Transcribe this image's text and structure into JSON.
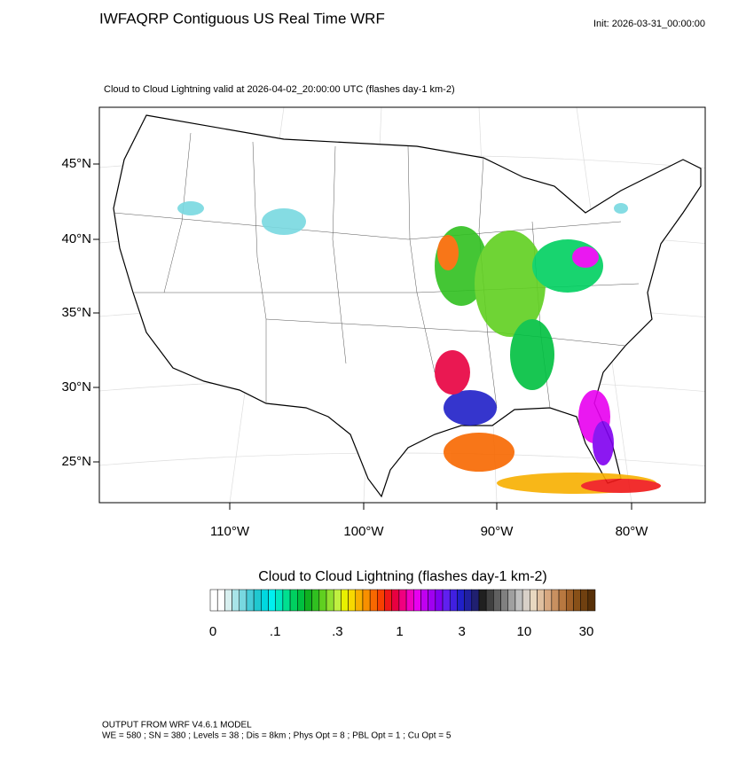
{
  "header": {
    "title": "IWFAQRP Contiguous US Real Time WRF",
    "init": "Init: 2026-03-31_00:00:00"
  },
  "map": {
    "subtitle": "Cloud to Cloud Lightning valid at 2026-04-02_20:00:00 UTC   (flashes day-1 km-2)",
    "lat_labels": [
      "45°N",
      "40°N",
      "35°N",
      "30°N",
      "25°N"
    ],
    "lon_labels": [
      "110°W",
      "100°W",
      "90°W",
      "80°W"
    ]
  },
  "colorbar": {
    "title": "Cloud to Cloud Lightning  (flashes day-1 km-2)",
    "labels": [
      "0",
      ".1",
      ".3",
      "1",
      "3",
      "10",
      "30"
    ],
    "colors": [
      "#ffffff",
      "#ffffff",
      "#d8f0f0",
      "#a8e4e8",
      "#78d8e0",
      "#48ccd8",
      "#20c8d0",
      "#00d8e0",
      "#00f0f0",
      "#00e8c0",
      "#00e090",
      "#00d060",
      "#00c040",
      "#10b020",
      "#30c020",
      "#60d020",
      "#90e030",
      "#c0f040",
      "#e8f000",
      "#f8d800",
      "#f8b000",
      "#f89000",
      "#f86800",
      "#f84000",
      "#f01818",
      "#e80040",
      "#f00080",
      "#f000c0",
      "#e800f0",
      "#c000f0",
      "#a000f0",
      "#8000f0",
      "#6020f0",
      "#4020e0",
      "#2020c8",
      "#2020a0",
      "#202070",
      "#202020",
      "#404040",
      "#606060",
      "#808080",
      "#a0a0a0",
      "#c0c0c0",
      "#d8d0c8",
      "#e8d8c0",
      "#e0c0a0",
      "#d8a880",
      "#c89060",
      "#b87840",
      "#a06028",
      "#885018",
      "#704010",
      "#583008"
    ]
  },
  "footer": {
    "line1": "OUTPUT FROM WRF V4.6.1 MODEL",
    "line2": "WE = 580 ; SN = 380 ; Levels = 38 ; Dis = 8km ; Phys Opt = 8 ; PBL Opt = 1 ; Cu Opt = 5"
  }
}
